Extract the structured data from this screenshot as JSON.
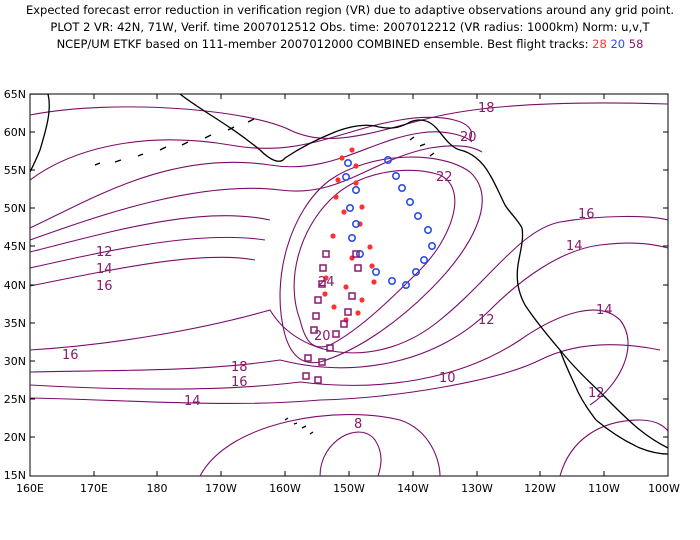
{
  "title": {
    "line1": "Expected forecast error reduction in verification region (VR) due to adaptive observations around any grid point.",
    "line2": "PLOT 2 VR: 42N, 71W, Verif. time 2007012512 Obs. time: 2007012212 (VR radius: 1000km) Norm: u,v,T",
    "line3_prefix": "NCEP/UM ETKF based on 111-member 2007012000 COMBINED ensemble.  Best flight tracks: ",
    "tracks": [
      "28",
      "20",
      "58"
    ]
  },
  "colors": {
    "track_28": "#ff3030",
    "track_20": "#2a4fe0",
    "track_58": "#8b1a6b",
    "contour": "#7b0d6b",
    "coast": "#000000"
  },
  "map": {
    "lon_labels": [
      "160E",
      "170E",
      "180",
      "170W",
      "160W",
      "150W",
      "140W",
      "130W",
      "120W",
      "110W",
      "100W"
    ],
    "lat_labels": [
      "65N",
      "60N",
      "55N",
      "50N",
      "45N",
      "40N",
      "35N",
      "30N",
      "25N",
      "20N",
      "15N"
    ],
    "contour_labels": [
      "18",
      "20",
      "22",
      "16",
      "14",
      "12",
      "14",
      "16",
      "24",
      "12",
      "14",
      "20",
      "16",
      "18",
      "16",
      "10",
      "14",
      "12",
      "8"
    ]
  }
}
